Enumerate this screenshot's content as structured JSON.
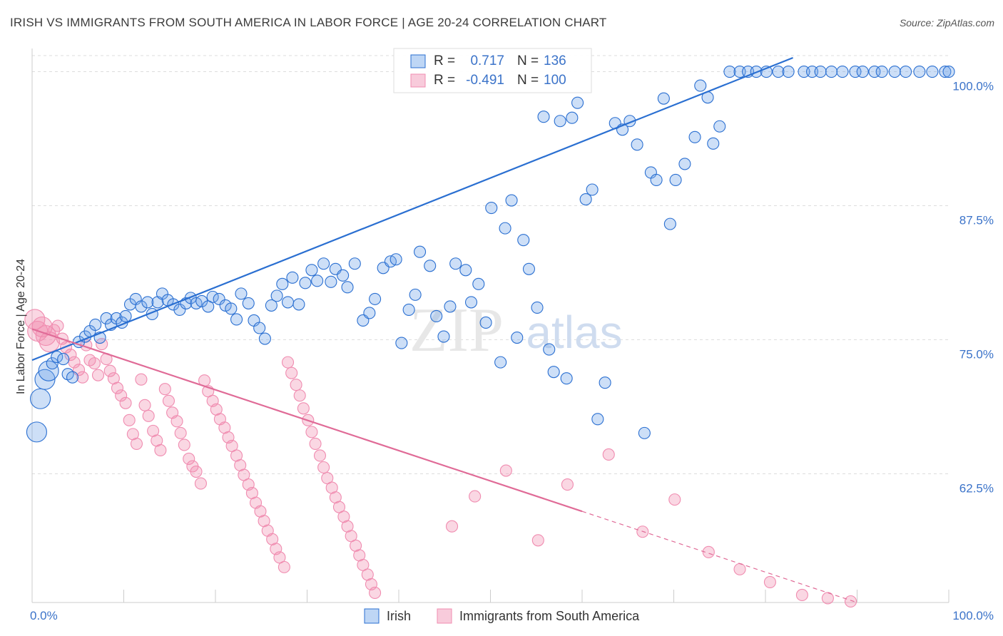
{
  "header": {
    "title": "IRISH VS IMMIGRANTS FROM SOUTH AMERICA IN LABOR FORCE | AGE 20-24 CORRELATION CHART",
    "source": "Source: ZipAtlas.com"
  },
  "watermark": {
    "zip": "ZIP",
    "atlas": "atlas"
  },
  "colors": {
    "irish": "#6fa3e8",
    "irish_line": "#2a6fd1",
    "south_america": "#f08cb0",
    "south_america_line": "#e06b97",
    "tick_label": "#3b73c9",
    "grid": "#dddddd"
  },
  "chart_data": {
    "type": "scatter",
    "xlabel": "",
    "ylabel": "In Labor Force | Age 20-24",
    "xlim": [
      0,
      100
    ],
    "ylim": [
      50.5,
      101.5
    ],
    "x_ticks": [
      {
        "v": 0,
        "label": "0.0%"
      },
      {
        "v": 100,
        "label": "100.0%"
      }
    ],
    "y_ticks": [
      {
        "v": 62.5,
        "label": "62.5%"
      },
      {
        "v": 75.0,
        "label": "75.0%"
      },
      {
        "v": 87.5,
        "label": "87.5%"
      },
      {
        "v": 100.0,
        "label": "100.0%"
      }
    ],
    "grid": true,
    "legend": {
      "position": "top-center",
      "rows": [
        {
          "r_label": "R =",
          "r_value": "0.717",
          "n_label": "N =",
          "n_value": "136"
        },
        {
          "r_label": "R =",
          "r_value": "-0.491",
          "n_label": "N =",
          "n_value": "100"
        }
      ]
    },
    "bottom_legend": [
      "Irish",
      "Immigrants from South America"
    ],
    "series": [
      {
        "name": "Irish",
        "trend": {
          "x": [
            0,
            83
          ],
          "y": [
            73.1,
            101.3
          ]
        },
        "points": [
          [
            0.5,
            66.4
          ],
          [
            0.9,
            69.5
          ],
          [
            1.4,
            71.3
          ],
          [
            1.8,
            72.1
          ],
          [
            2.2,
            72.8
          ],
          [
            2.7,
            73.4
          ],
          [
            3.4,
            73.2
          ],
          [
            3.9,
            71.8
          ],
          [
            4.4,
            71.5
          ],
          [
            5.1,
            74.8
          ],
          [
            5.8,
            75.3
          ],
          [
            6.3,
            75.8
          ],
          [
            6.9,
            76.4
          ],
          [
            7.4,
            75.2
          ],
          [
            8.1,
            77.0
          ],
          [
            8.6,
            76.4
          ],
          [
            9.2,
            77.0
          ],
          [
            9.8,
            76.6
          ],
          [
            10.2,
            77.2
          ],
          [
            10.7,
            78.3
          ],
          [
            11.3,
            78.8
          ],
          [
            11.9,
            78.1
          ],
          [
            12.6,
            78.5
          ],
          [
            13.1,
            77.4
          ],
          [
            13.7,
            78.5
          ],
          [
            14.2,
            79.3
          ],
          [
            14.8,
            78.7
          ],
          [
            15.4,
            78.3
          ],
          [
            16.1,
            77.8
          ],
          [
            16.8,
            78.4
          ],
          [
            17.3,
            78.9
          ],
          [
            17.9,
            78.4
          ],
          [
            18.5,
            78.6
          ],
          [
            19.2,
            78.1
          ],
          [
            19.7,
            79.0
          ],
          [
            20.4,
            78.8
          ],
          [
            21.1,
            78.2
          ],
          [
            21.7,
            77.9
          ],
          [
            22.3,
            76.9
          ],
          [
            22.8,
            79.3
          ],
          [
            23.6,
            78.4
          ],
          [
            24.2,
            76.8
          ],
          [
            24.8,
            76.1
          ],
          [
            25.4,
            75.1
          ],
          [
            26.1,
            78.2
          ],
          [
            26.7,
            79.1
          ],
          [
            27.3,
            80.2
          ],
          [
            27.9,
            78.5
          ],
          [
            28.4,
            80.8
          ],
          [
            29.1,
            78.3
          ],
          [
            29.8,
            80.3
          ],
          [
            30.5,
            81.5
          ],
          [
            31.1,
            80.5
          ],
          [
            31.8,
            82.1
          ],
          [
            32.6,
            80.4
          ],
          [
            33.1,
            81.6
          ],
          [
            33.9,
            81.0
          ],
          [
            34.4,
            79.9
          ],
          [
            35.2,
            82.1
          ],
          [
            36.1,
            76.8
          ],
          [
            36.8,
            77.5
          ],
          [
            37.4,
            78.8
          ],
          [
            38.3,
            81.7
          ],
          [
            39.1,
            82.3
          ],
          [
            39.7,
            82.5
          ],
          [
            40.3,
            74.7
          ],
          [
            41.1,
            77.8
          ],
          [
            41.8,
            79.2
          ],
          [
            42.3,
            83.2
          ],
          [
            43.4,
            81.9
          ],
          [
            44.1,
            77.2
          ],
          [
            44.9,
            75.3
          ],
          [
            45.6,
            78.1
          ],
          [
            46.2,
            82.1
          ],
          [
            47.3,
            81.5
          ],
          [
            47.9,
            78.5
          ],
          [
            48.7,
            80.2
          ],
          [
            49.5,
            76.6
          ],
          [
            50.1,
            87.3
          ],
          [
            51.1,
            72.9
          ],
          [
            51.6,
            85.4
          ],
          [
            52.3,
            88.0
          ],
          [
            52.9,
            75.2
          ],
          [
            53.6,
            84.3
          ],
          [
            54.2,
            81.6
          ],
          [
            55.1,
            78.0
          ],
          [
            55.8,
            95.8
          ],
          [
            56.4,
            74.1
          ],
          [
            56.9,
            72.0
          ],
          [
            57.6,
            95.4
          ],
          [
            58.3,
            71.4
          ],
          [
            58.9,
            95.7
          ],
          [
            59.5,
            97.1
          ],
          [
            60.4,
            88.1
          ],
          [
            61.1,
            89.0
          ],
          [
            61.7,
            67.6
          ],
          [
            62.5,
            71.0
          ],
          [
            63.6,
            95.2
          ],
          [
            64.4,
            94.6
          ],
          [
            65.2,
            95.4
          ],
          [
            66.0,
            93.2
          ],
          [
            66.8,
            66.3
          ],
          [
            67.5,
            90.6
          ],
          [
            68.1,
            89.9
          ],
          [
            68.9,
            97.5
          ],
          [
            69.6,
            85.8
          ],
          [
            70.2,
            89.9
          ],
          [
            71.2,
            91.4
          ],
          [
            72.3,
            93.9
          ],
          [
            72.9,
            98.7
          ],
          [
            73.7,
            97.6
          ],
          [
            74.3,
            93.3
          ],
          [
            75.0,
            94.9
          ],
          [
            76.1,
            100.0
          ],
          [
            77.2,
            100.0
          ],
          [
            78.1,
            100.0
          ],
          [
            79.0,
            100.0
          ],
          [
            80.1,
            100.0
          ],
          [
            81.4,
            100.0
          ],
          [
            82.5,
            100.0
          ],
          [
            84.2,
            100.0
          ],
          [
            85.1,
            100.0
          ],
          [
            86.0,
            100.0
          ],
          [
            87.2,
            100.0
          ],
          [
            88.4,
            100.0
          ],
          [
            89.8,
            100.0
          ],
          [
            90.6,
            100.0
          ],
          [
            91.9,
            100.0
          ],
          [
            92.7,
            100.0
          ],
          [
            94.1,
            100.0
          ],
          [
            95.3,
            100.0
          ],
          [
            96.8,
            100.0
          ],
          [
            98.2,
            100.0
          ],
          [
            99.6,
            100.0
          ],
          [
            100.0,
            100.0
          ]
        ]
      },
      {
        "name": "Immigrants from South America",
        "trend": {
          "x": [
            0,
            60
          ],
          "y": [
            76.0,
            59.0
          ]
        },
        "trend_dashed": {
          "x": [
            60,
            90
          ],
          "y": [
            59.0,
            50.5
          ]
        },
        "points": [
          [
            0.3,
            76.9
          ],
          [
            0.6,
            75.8
          ],
          [
            1.1,
            76.2
          ],
          [
            1.5,
            75.4
          ],
          [
            1.9,
            74.8
          ],
          [
            2.4,
            75.9
          ],
          [
            2.8,
            76.3
          ],
          [
            3.3,
            75.1
          ],
          [
            3.7,
            74.3
          ],
          [
            4.2,
            73.6
          ],
          [
            4.6,
            72.9
          ],
          [
            5.1,
            72.2
          ],
          [
            5.5,
            71.5
          ],
          [
            5.9,
            74.5
          ],
          [
            6.3,
            73.1
          ],
          [
            6.8,
            72.8
          ],
          [
            7.2,
            71.7
          ],
          [
            7.6,
            74.6
          ],
          [
            8.1,
            73.2
          ],
          [
            8.5,
            72.1
          ],
          [
            8.9,
            71.4
          ],
          [
            9.3,
            70.5
          ],
          [
            9.7,
            69.8
          ],
          [
            10.2,
            69.1
          ],
          [
            10.6,
            67.5
          ],
          [
            11.0,
            66.2
          ],
          [
            11.4,
            65.3
          ],
          [
            11.9,
            71.3
          ],
          [
            12.3,
            68.9
          ],
          [
            12.7,
            67.9
          ],
          [
            13.2,
            66.5
          ],
          [
            13.6,
            65.6
          ],
          [
            14.0,
            64.7
          ],
          [
            14.5,
            70.4
          ],
          [
            14.9,
            69.3
          ],
          [
            15.3,
            68.2
          ],
          [
            15.8,
            67.4
          ],
          [
            16.2,
            66.3
          ],
          [
            16.6,
            65.2
          ],
          [
            17.1,
            63.9
          ],
          [
            17.5,
            63.2
          ],
          [
            17.9,
            62.7
          ],
          [
            18.4,
            61.6
          ],
          [
            18.8,
            71.2
          ],
          [
            19.2,
            70.2
          ],
          [
            19.7,
            69.3
          ],
          [
            20.1,
            68.5
          ],
          [
            20.5,
            67.6
          ],
          [
            21.0,
            66.8
          ],
          [
            21.4,
            65.9
          ],
          [
            21.8,
            65.1
          ],
          [
            22.3,
            64.2
          ],
          [
            22.7,
            63.3
          ],
          [
            23.1,
            62.4
          ],
          [
            23.6,
            61.5
          ],
          [
            24.0,
            60.7
          ],
          [
            24.4,
            59.8
          ],
          [
            24.9,
            59.0
          ],
          [
            25.3,
            58.1
          ],
          [
            25.7,
            57.2
          ],
          [
            26.2,
            56.4
          ],
          [
            26.6,
            55.5
          ],
          [
            27.0,
            54.7
          ],
          [
            27.5,
            53.8
          ],
          [
            27.9,
            72.9
          ],
          [
            28.3,
            71.9
          ],
          [
            28.8,
            70.8
          ],
          [
            29.2,
            69.8
          ],
          [
            29.6,
            68.6
          ],
          [
            30.1,
            67.5
          ],
          [
            30.5,
            66.4
          ],
          [
            30.9,
            65.3
          ],
          [
            31.4,
            64.2
          ],
          [
            31.8,
            63.1
          ],
          [
            32.2,
            62.1
          ],
          [
            32.7,
            61.2
          ],
          [
            33.1,
            60.3
          ],
          [
            33.5,
            59.4
          ],
          [
            34.0,
            58.5
          ],
          [
            34.4,
            57.6
          ],
          [
            34.8,
            56.7
          ],
          [
            35.3,
            55.8
          ],
          [
            35.7,
            54.9
          ],
          [
            36.1,
            54.0
          ],
          [
            36.6,
            53.1
          ],
          [
            37.0,
            52.2
          ],
          [
            37.4,
            51.4
          ],
          [
            45.8,
            57.6
          ],
          [
            48.3,
            60.4
          ],
          [
            51.7,
            62.8
          ],
          [
            55.2,
            56.3
          ],
          [
            58.4,
            61.5
          ],
          [
            62.9,
            64.3
          ],
          [
            66.6,
            57.1
          ],
          [
            70.1,
            60.1
          ],
          [
            73.8,
            55.2
          ],
          [
            77.2,
            53.6
          ],
          [
            80.5,
            52.4
          ],
          [
            84.0,
            51.2
          ],
          [
            86.8,
            50.9
          ],
          [
            89.3,
            50.6
          ]
        ]
      }
    ]
  }
}
